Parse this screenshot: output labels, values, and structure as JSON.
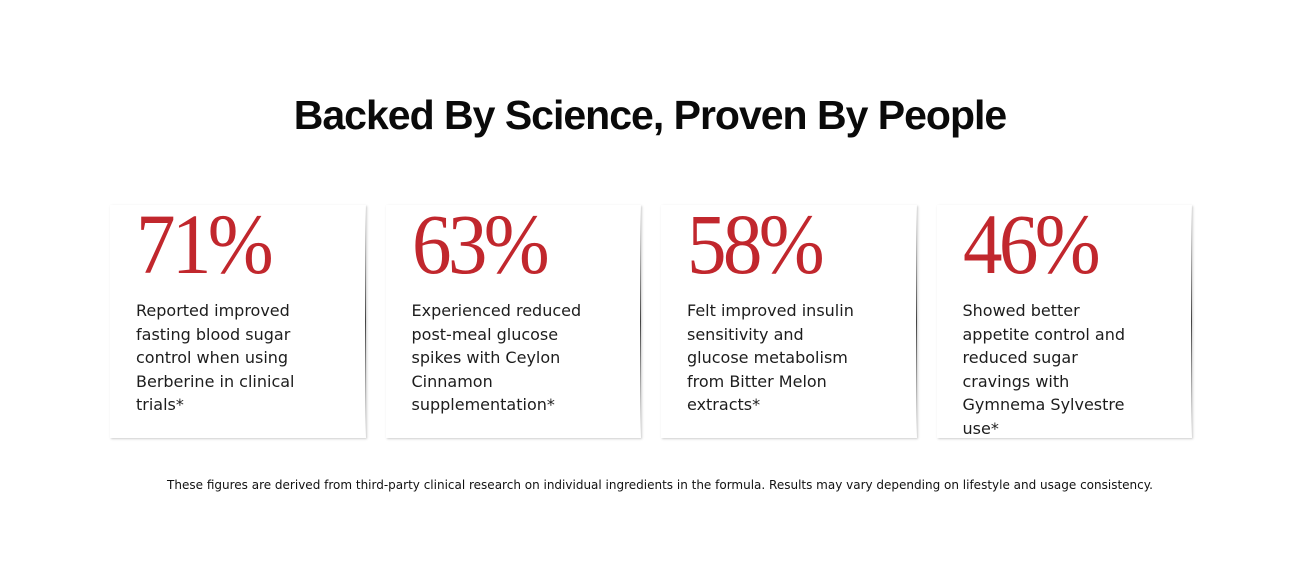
{
  "title": "Backed By Science, Proven By People",
  "stats": [
    {
      "value": "71%",
      "description": "Reported improved fasting blood sugar control when using Berberine in clinical trials*"
    },
    {
      "value": "63%",
      "description": "Experienced reduced post-meal glucose spikes with Ceylon Cinnamon supplementation*"
    },
    {
      "value": "58%",
      "description": "Felt improved insulin sensitivity and glucose metabolism from Bitter Melon extracts*"
    },
    {
      "value": "46%",
      "description": "Showed better appetite control and reduced sugar cravings with Gymnema Sylvestre use*"
    }
  ],
  "footnote": "These figures are derived from third-party clinical research on individual ingredients in the formula. Results may vary depending on lifestyle and usage consistency.",
  "colors": {
    "accent": "#c1272d",
    "text": "#1d1d1d"
  }
}
